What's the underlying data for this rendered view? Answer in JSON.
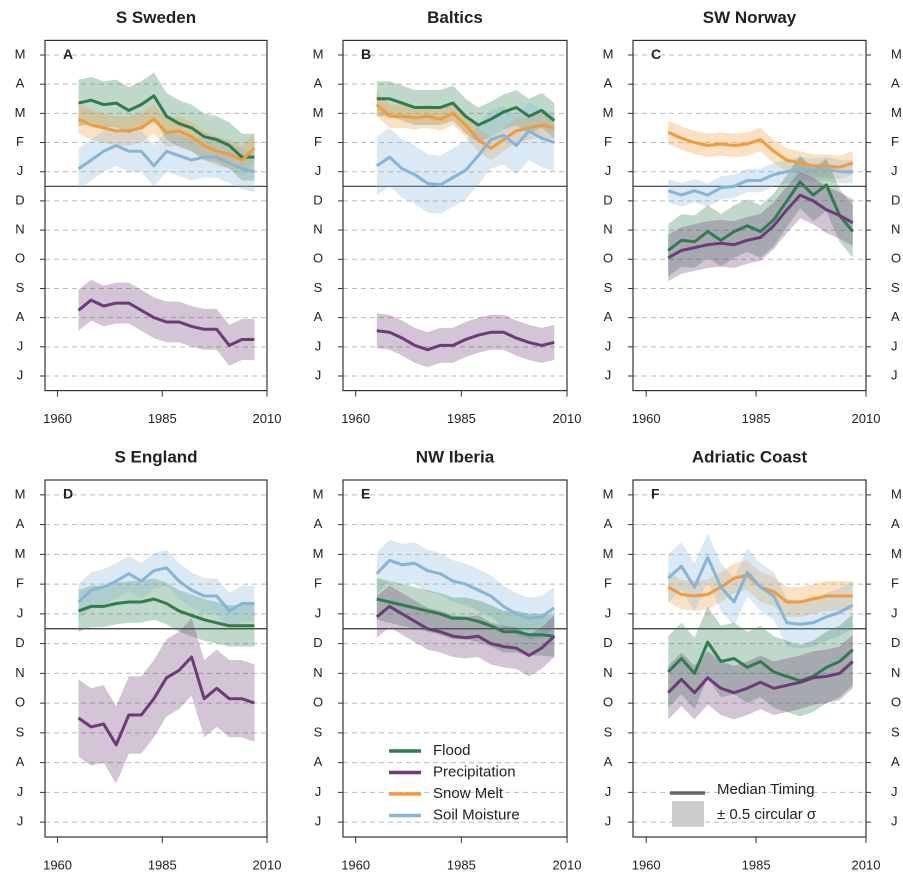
{
  "chart_data": [
    {
      "type": "line",
      "title": "S Sweden",
      "panel_label": "A",
      "x": [
        1965,
        1968,
        1971,
        1974,
        1977,
        1980,
        1983,
        1986,
        1989,
        1992,
        1995,
        1998,
        2001,
        2004,
        2007
      ],
      "xlim": [
        1957,
        2010
      ],
      "xticks": [
        1960,
        1985,
        2010
      ],
      "ylim": [
        0,
        12
      ],
      "year_start_line": 7,
      "grid": true,
      "y_labels_right": false,
      "yticks": [
        {
          "value": 0.5,
          "label": "J"
        },
        {
          "value": 1.5,
          "label": "J"
        },
        {
          "value": 2.5,
          "label": "A"
        },
        {
          "value": 3.5,
          "label": "S"
        },
        {
          "value": 4.5,
          "label": "O"
        },
        {
          "value": 5.5,
          "label": "N"
        },
        {
          "value": 6.5,
          "label": "D"
        },
        {
          "value": 7.5,
          "label": "J"
        },
        {
          "value": 8.5,
          "label": "F"
        },
        {
          "value": 9.5,
          "label": "M"
        },
        {
          "value": 10.5,
          "label": "A"
        },
        {
          "value": 11.5,
          "label": "M"
        }
      ],
      "series": [
        {
          "name": "Flood",
          "color": "#2f7d4f",
          "spread": 0.8,
          "values": [
            9.85,
            9.95,
            9.8,
            9.85,
            9.6,
            9.8,
            10.1,
            9.4,
            9.15,
            9.0,
            8.7,
            8.6,
            8.4,
            8.0,
            8.0
          ]
        },
        {
          "name": "Snow Melt",
          "color": "#f39a3a",
          "spread": 0.5,
          "values": [
            9.3,
            9.1,
            9.0,
            8.9,
            8.9,
            9.0,
            9.3,
            8.85,
            8.9,
            8.7,
            8.4,
            8.2,
            8.1,
            7.9,
            8.3
          ]
        },
        {
          "name": "Soil Moisture",
          "color": "#86b5d8",
          "spread": 0.7,
          "values": [
            7.6,
            7.9,
            8.2,
            8.4,
            8.2,
            8.2,
            7.7,
            8.2,
            8.05,
            7.9,
            8.0,
            8.0,
            7.8,
            7.6,
            7.5
          ]
        },
        {
          "name": "Precipitation",
          "color": "#6d3b78",
          "spread": 0.7,
          "values": [
            2.75,
            3.1,
            2.9,
            3.0,
            3.0,
            2.75,
            2.5,
            2.35,
            2.35,
            2.2,
            2.1,
            2.1,
            1.55,
            1.75,
            1.75
          ]
        }
      ]
    },
    {
      "type": "line",
      "title": "Baltics",
      "panel_label": "B",
      "x": [
        1965,
        1968,
        1971,
        1974,
        1977,
        1980,
        1983,
        1986,
        1989,
        1992,
        1995,
        1998,
        2001,
        2004,
        2007
      ],
      "xlim": [
        1957,
        2010
      ],
      "xticks": [
        1960,
        1985,
        2010
      ],
      "ylim": [
        0,
        12
      ],
      "year_start_line": 7,
      "grid": true,
      "y_labels_right": false,
      "yticks": [
        {
          "value": 0.5,
          "label": "J"
        },
        {
          "value": 1.5,
          "label": "J"
        },
        {
          "value": 2.5,
          "label": "A"
        },
        {
          "value": 3.5,
          "label": "S"
        },
        {
          "value": 4.5,
          "label": "O"
        },
        {
          "value": 5.5,
          "label": "N"
        },
        {
          "value": 6.5,
          "label": "D"
        },
        {
          "value": 7.5,
          "label": "J"
        },
        {
          "value": 8.5,
          "label": "F"
        },
        {
          "value": 9.5,
          "label": "M"
        },
        {
          "value": 10.5,
          "label": "A"
        },
        {
          "value": 11.5,
          "label": "M"
        }
      ],
      "series": [
        {
          "name": "Flood",
          "color": "#2f7d4f",
          "spread": 0.6,
          "values": [
            10.0,
            10.0,
            9.85,
            9.7,
            9.7,
            9.7,
            9.85,
            9.4,
            9.1,
            9.3,
            9.55,
            9.7,
            9.4,
            9.6,
            9.25
          ]
        },
        {
          "name": "Snow Melt",
          "color": "#f39a3a",
          "spread": 0.4,
          "values": [
            9.8,
            9.4,
            9.4,
            9.35,
            9.4,
            9.3,
            9.5,
            9.1,
            8.6,
            8.3,
            8.6,
            8.9,
            9.0,
            9.1,
            9.0
          ]
        },
        {
          "name": "Soil Moisture",
          "color": "#86b5d8",
          "spread": 1.0,
          "values": [
            7.7,
            8.0,
            7.6,
            7.4,
            7.1,
            7.05,
            7.3,
            7.55,
            8.05,
            8.6,
            8.75,
            8.4,
            8.9,
            8.65,
            8.5
          ]
        },
        {
          "name": "Precipitation",
          "color": "#6d3b78",
          "spread": 0.6,
          "values": [
            2.05,
            2.0,
            1.8,
            1.55,
            1.4,
            1.55,
            1.55,
            1.75,
            1.9,
            2.0,
            2.0,
            1.8,
            1.65,
            1.55,
            1.65
          ]
        }
      ]
    },
    {
      "type": "line",
      "title": "SW Norway",
      "panel_label": "C",
      "x": [
        1965,
        1968,
        1971,
        1974,
        1977,
        1980,
        1983,
        1986,
        1989,
        1992,
        1995,
        1998,
        2001,
        2004,
        2007
      ],
      "xlim": [
        1957,
        2010
      ],
      "xticks": [
        1960,
        1985,
        2010
      ],
      "ylim": [
        0,
        12
      ],
      "year_start_line": 7,
      "grid": true,
      "y_labels_right": true,
      "yticks": [
        {
          "value": 0.5,
          "label": "J"
        },
        {
          "value": 1.5,
          "label": "J"
        },
        {
          "value": 2.5,
          "label": "A"
        },
        {
          "value": 3.5,
          "label": "S"
        },
        {
          "value": 4.5,
          "label": "O"
        },
        {
          "value": 5.5,
          "label": "N"
        },
        {
          "value": 6.5,
          "label": "D"
        },
        {
          "value": 7.5,
          "label": "J"
        },
        {
          "value": 8.5,
          "label": "F"
        },
        {
          "value": 9.5,
          "label": "M"
        },
        {
          "value": 10.5,
          "label": "A"
        },
        {
          "value": 11.5,
          "label": "M"
        }
      ],
      "series": [
        {
          "name": "Snow Melt",
          "color": "#f39a3a",
          "spread": 0.4,
          "values": [
            8.85,
            8.65,
            8.5,
            8.4,
            8.45,
            8.4,
            8.45,
            8.6,
            8.2,
            7.9,
            7.8,
            7.7,
            7.7,
            7.65,
            7.8
          ]
        },
        {
          "name": "Soil Moisture",
          "color": "#86b5d8",
          "spread": 0.4,
          "values": [
            6.85,
            6.7,
            6.85,
            6.7,
            6.95,
            7.0,
            7.2,
            7.2,
            7.4,
            7.5,
            7.6,
            7.55,
            7.6,
            7.5,
            7.5
          ]
        },
        {
          "name": "Flood",
          "color": "#2f7d4f",
          "spread": 0.9,
          "values": [
            4.8,
            5.15,
            5.1,
            5.45,
            5.15,
            5.45,
            5.65,
            5.45,
            5.85,
            6.5,
            7.15,
            6.7,
            7.05,
            6.0,
            5.45
          ]
        },
        {
          "name": "Precipitation",
          "color": "#6d3b78",
          "spread": 0.8,
          "values": [
            4.55,
            4.8,
            4.9,
            5.0,
            5.05,
            5.0,
            5.15,
            5.25,
            5.65,
            6.2,
            6.7,
            6.5,
            6.2,
            6.0,
            5.75
          ]
        }
      ]
    },
    {
      "type": "line",
      "title": "S England",
      "panel_label": "D",
      "x": [
        1965,
        1968,
        1971,
        1974,
        1977,
        1980,
        1983,
        1986,
        1989,
        1992,
        1995,
        1998,
        2001,
        2004,
        2007
      ],
      "xlim": [
        1957,
        2010
      ],
      "xticks": [
        1960,
        1985,
        2010
      ],
      "ylim": [
        0,
        12
      ],
      "year_start_line": 7,
      "grid": true,
      "y_labels_right": false,
      "yticks": [
        {
          "value": 0.5,
          "label": "J"
        },
        {
          "value": 1.5,
          "label": "J"
        },
        {
          "value": 2.5,
          "label": "A"
        },
        {
          "value": 3.5,
          "label": "S"
        },
        {
          "value": 4.5,
          "label": "O"
        },
        {
          "value": 5.5,
          "label": "N"
        },
        {
          "value": 6.5,
          "label": "D"
        },
        {
          "value": 7.5,
          "label": "J"
        },
        {
          "value": 8.5,
          "label": "F"
        },
        {
          "value": 9.5,
          "label": "M"
        },
        {
          "value": 10.5,
          "label": "A"
        },
        {
          "value": 11.5,
          "label": "M"
        }
      ],
      "series": [
        {
          "name": "Flood",
          "color": "#2f7d4f",
          "spread": 0.7,
          "values": [
            7.6,
            7.75,
            7.75,
            7.85,
            7.9,
            7.9,
            8.0,
            7.85,
            7.6,
            7.45,
            7.3,
            7.2,
            7.1,
            7.1,
            7.1
          ]
        },
        {
          "name": "Soil Moisture",
          "color": "#86b5d8",
          "spread": 0.6,
          "values": [
            7.9,
            8.3,
            8.4,
            8.6,
            8.85,
            8.6,
            8.95,
            9.05,
            8.6,
            8.3,
            8.1,
            8.1,
            7.6,
            7.85,
            7.85
          ]
        },
        {
          "name": "Precipitation",
          "color": "#6d3b78",
          "spread": 1.3,
          "values": [
            4.0,
            3.7,
            3.8,
            3.1,
            4.1,
            4.1,
            4.65,
            5.35,
            5.6,
            6.05,
            4.65,
            5.0,
            4.65,
            4.65,
            4.5
          ]
        }
      ]
    },
    {
      "type": "line",
      "title": "NW Iberia",
      "panel_label": "E",
      "x": [
        1965,
        1968,
        1971,
        1974,
        1977,
        1980,
        1983,
        1986,
        1989,
        1992,
        1995,
        1998,
        2001,
        2004,
        2007
      ],
      "xlim": [
        1957,
        2010
      ],
      "xticks": [
        1960,
        1985,
        2010
      ],
      "ylim": [
        0,
        12
      ],
      "year_start_line": 7,
      "grid": true,
      "y_labels_right": false,
      "yticks": [
        {
          "value": 0.5,
          "label": "J"
        },
        {
          "value": 1.5,
          "label": "J"
        },
        {
          "value": 2.5,
          "label": "A"
        },
        {
          "value": 3.5,
          "label": "S"
        },
        {
          "value": 4.5,
          "label": "O"
        },
        {
          "value": 5.5,
          "label": "N"
        },
        {
          "value": 6.5,
          "label": "D"
        },
        {
          "value": 7.5,
          "label": "J"
        },
        {
          "value": 8.5,
          "label": "F"
        },
        {
          "value": 9.5,
          "label": "M"
        },
        {
          "value": 10.5,
          "label": "A"
        },
        {
          "value": 11.5,
          "label": "M"
        }
      ],
      "series": [
        {
          "name": "Soil Moisture",
          "color": "#86b5d8",
          "spread": 0.7,
          "values": [
            8.85,
            9.3,
            9.15,
            9.2,
            8.95,
            8.85,
            8.6,
            8.5,
            8.3,
            8.1,
            7.75,
            7.5,
            7.35,
            7.4,
            7.7
          ]
        },
        {
          "name": "Flood",
          "color": "#2f7d4f",
          "spread": 0.7,
          "values": [
            8.0,
            7.9,
            7.8,
            7.7,
            7.6,
            7.5,
            7.35,
            7.35,
            7.25,
            7.1,
            6.9,
            6.9,
            6.8,
            6.8,
            6.75
          ]
        },
        {
          "name": "Precipitation",
          "color": "#6d3b78",
          "spread": 0.7,
          "values": [
            7.4,
            7.75,
            7.5,
            7.25,
            7.0,
            6.9,
            6.75,
            6.7,
            6.75,
            6.5,
            6.4,
            6.35,
            6.1,
            6.35,
            6.75
          ]
        }
      ]
    },
    {
      "type": "line",
      "title": "Adriatic Coast",
      "panel_label": "F",
      "x": [
        1965,
        1968,
        1971,
        1974,
        1977,
        1980,
        1983,
        1986,
        1989,
        1992,
        1995,
        1998,
        2001,
        2004,
        2007
      ],
      "xlim": [
        1957,
        2010
      ],
      "xticks": [
        1960,
        1985,
        2010
      ],
      "ylim": [
        0,
        12
      ],
      "year_start_line": 7,
      "grid": true,
      "y_labels_right": true,
      "yticks": [
        {
          "value": 0.5,
          "label": "J"
        },
        {
          "value": 1.5,
          "label": "J"
        },
        {
          "value": 2.5,
          "label": "A"
        },
        {
          "value": 3.5,
          "label": "S"
        },
        {
          "value": 4.5,
          "label": "O"
        },
        {
          "value": 5.5,
          "label": "N"
        },
        {
          "value": 6.5,
          "label": "D"
        },
        {
          "value": 7.5,
          "label": "J"
        },
        {
          "value": 8.5,
          "label": "F"
        },
        {
          "value": 9.5,
          "label": "M"
        },
        {
          "value": 10.5,
          "label": "A"
        },
        {
          "value": 11.5,
          "label": "M"
        }
      ],
      "series": [
        {
          "name": "Snow Melt",
          "color": "#f39a3a",
          "spread": 0.5,
          "values": [
            8.4,
            8.15,
            8.1,
            8.15,
            8.4,
            8.7,
            8.8,
            8.4,
            8.25,
            7.9,
            7.9,
            8.0,
            8.1,
            8.1,
            8.1
          ]
        },
        {
          "name": "Soil Moisture",
          "color": "#86b5d8",
          "spread": 0.8,
          "values": [
            8.7,
            9.1,
            8.4,
            9.4,
            8.4,
            7.9,
            8.9,
            8.4,
            8.1,
            7.2,
            7.15,
            7.2,
            7.4,
            7.55,
            7.8
          ]
        },
        {
          "name": "Flood",
          "color": "#2f7d4f",
          "spread": 1.2,
          "values": [
            5.55,
            6.0,
            5.5,
            6.55,
            5.9,
            6.0,
            5.7,
            5.9,
            5.55,
            5.4,
            5.25,
            5.4,
            5.7,
            5.9,
            6.3
          ]
        },
        {
          "name": "Precipitation",
          "color": "#6d3b78",
          "spread": 0.9,
          "values": [
            4.85,
            5.3,
            4.85,
            5.35,
            5.0,
            4.85,
            5.0,
            5.2,
            5.0,
            5.1,
            5.2,
            5.35,
            5.4,
            5.5,
            5.9
          ]
        }
      ]
    }
  ],
  "legend": {
    "entries": [
      {
        "name": "Flood",
        "color": "#2f7d4f"
      },
      {
        "name": "Precipitation",
        "color": "#6d3b78"
      },
      {
        "name": "Snow Melt",
        "color": "#f39a3a"
      },
      {
        "name": "Soil Moisture",
        "color": "#86b5d8"
      }
    ],
    "key": {
      "line": "Median Timing",
      "band": "± 0.5 circular σ"
    }
  }
}
